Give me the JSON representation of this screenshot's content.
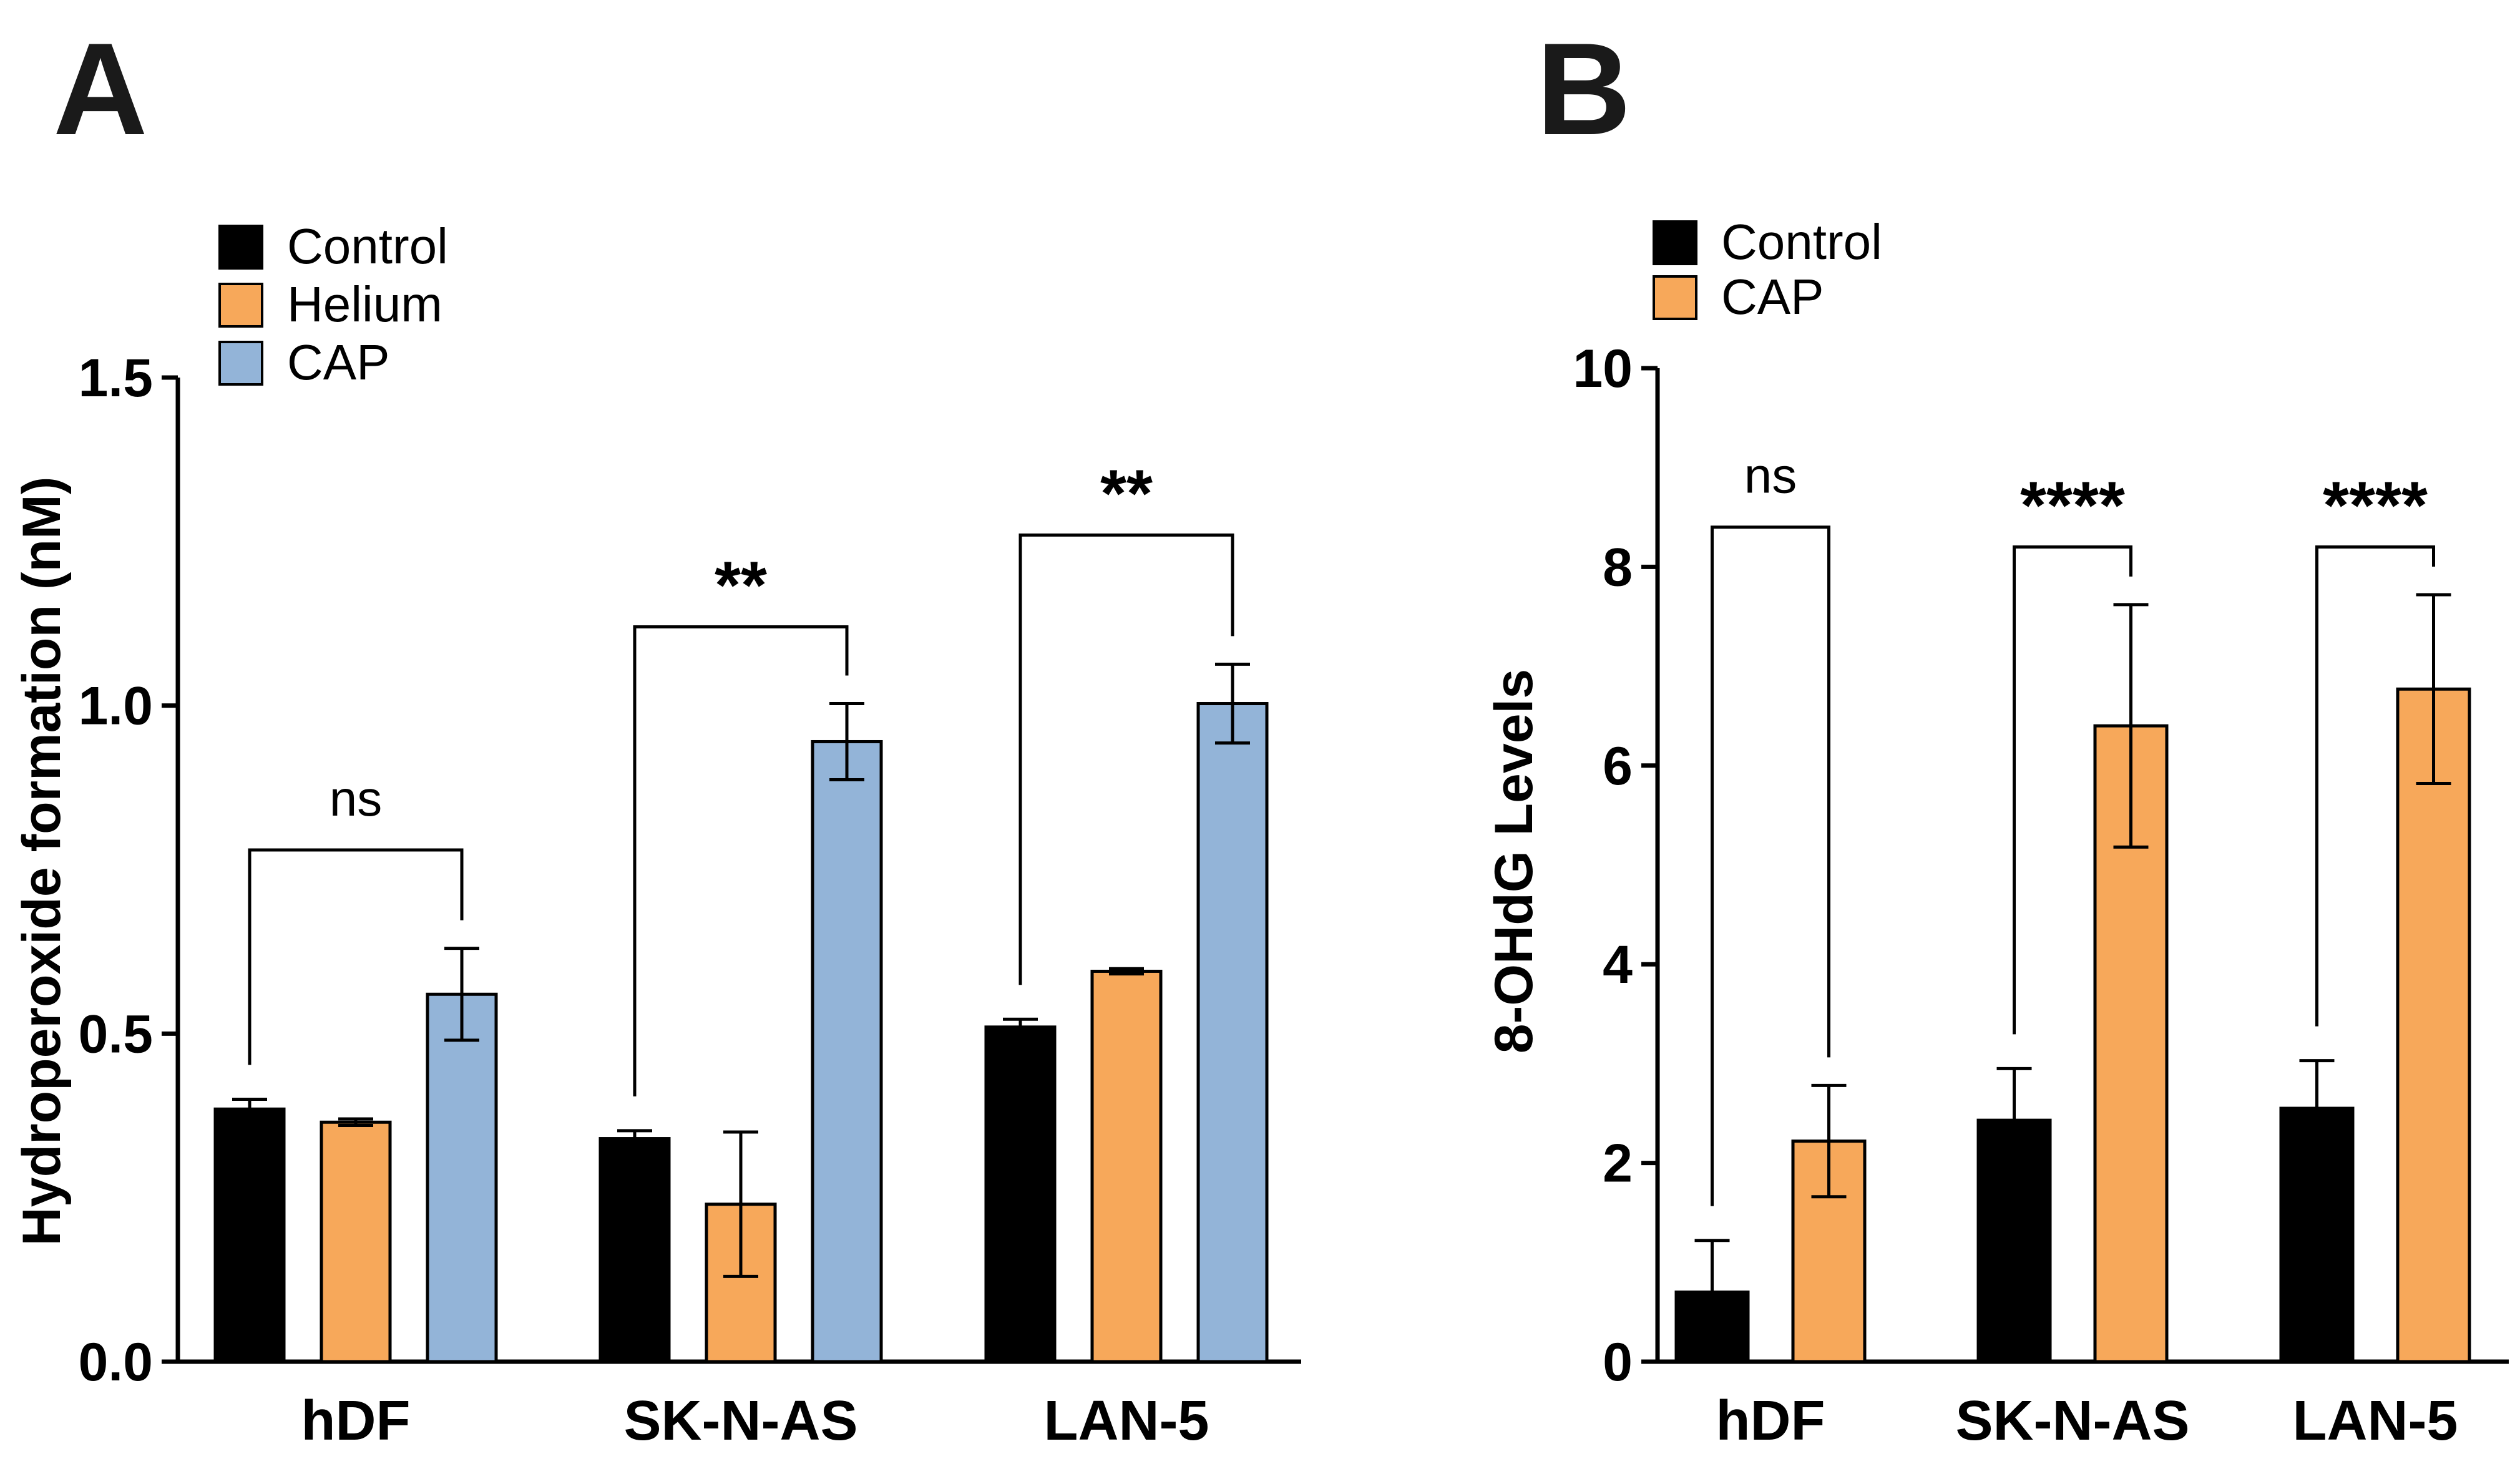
{
  "chart_data": [
    {
      "panel": "A",
      "type": "bar",
      "title": "",
      "xlabel": "",
      "ylabel": "Hydroperoxide formation (nM)",
      "ylim": [
        0,
        1.5
      ],
      "yticks": [
        "0.0",
        "0.5",
        "1.0",
        "1.5"
      ],
      "categories": [
        "hDF",
        "SK-N-AS",
        "LAN-5"
      ],
      "legend_position": "top-left",
      "series": [
        {
          "name": "Control",
          "color": "#000000",
          "values": [
            0.385,
            0.34,
            0.51
          ],
          "errors": [
            0.015,
            0.012,
            0.012
          ]
        },
        {
          "name": "Helium",
          "color": "#f7a85a",
          "values": [
            0.365,
            0.24,
            0.595
          ],
          "errors": [
            0.005,
            0.11,
            0.004
          ]
        },
        {
          "name": "CAP",
          "color": "#93b4d8",
          "values": [
            0.56,
            0.945,
            1.003
          ],
          "errors": [
            0.07,
            0.058,
            0.06
          ]
        }
      ],
      "significance": [
        {
          "category": "hDF",
          "from_series": 0,
          "to_series": 2,
          "label": "ns",
          "bracket_y": 0.78
        },
        {
          "category": "SK-N-AS",
          "from_series": 0,
          "to_series": 2,
          "label": "**",
          "bracket_y": 1.12
        },
        {
          "category": "LAN-5",
          "from_series": 0,
          "to_series": 2,
          "label": "**",
          "bracket_y": 1.26
        }
      ]
    },
    {
      "panel": "B",
      "type": "bar",
      "title": "",
      "xlabel": "",
      "ylabel": "8-OHdG Levels",
      "ylim": [
        0,
        10
      ],
      "yticks": [
        "0",
        "2",
        "4",
        "6",
        "8",
        "10"
      ],
      "categories": [
        "hDF",
        "SK-N-AS",
        "LAN-5"
      ],
      "legend_position": "top-left",
      "series": [
        {
          "name": "Control",
          "color": "#000000",
          "values": [
            0.7,
            2.43,
            2.55
          ],
          "errors": [
            0.52,
            0.52,
            0.48
          ]
        },
        {
          "name": "CAP",
          "color": "#f7a85a",
          "values": [
            2.22,
            6.4,
            6.77
          ],
          "errors": [
            0.56,
            1.22,
            0.95
          ]
        }
      ],
      "significance": [
        {
          "category": "hDF",
          "from_series": 0,
          "to_series": 1,
          "label": "ns",
          "bracket_y": 8.4
        },
        {
          "category": "SK-N-AS",
          "from_series": 0,
          "to_series": 1,
          "label": "****",
          "bracket_y": 8.2
        },
        {
          "category": "LAN-5",
          "from_series": 0,
          "to_series": 1,
          "label": "****",
          "bracket_y": 8.2
        }
      ]
    }
  ]
}
